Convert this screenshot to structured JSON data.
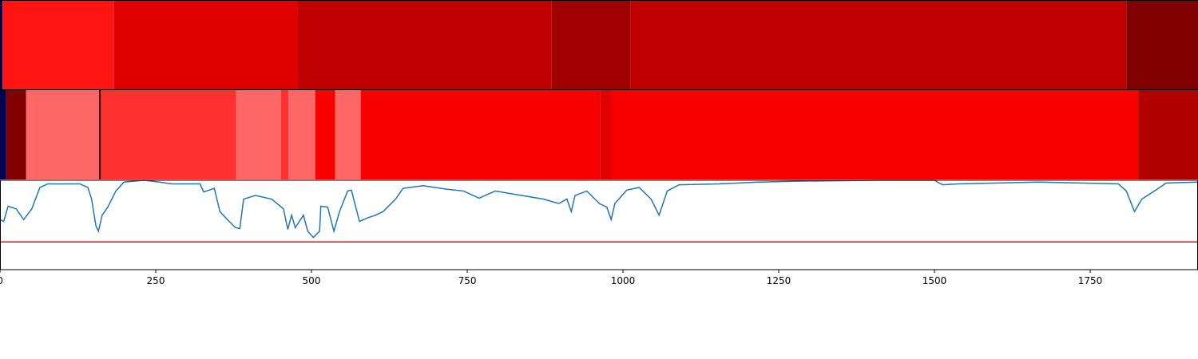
{
  "chart_data": [
    {
      "type": "strip",
      "xlim": [
        0,
        1923
      ],
      "bins": [
        0,
        4,
        183,
        477,
        885,
        1012,
        1808,
        1923
      ],
      "colors": [
        "#000050",
        "#ff1414",
        "#e00000",
        "#c00000",
        "#a00000",
        "#c00000",
        "#800000"
      ]
    },
    {
      "type": "strip",
      "xlim": [
        0,
        1923
      ],
      "bins": [
        0,
        10,
        42,
        159,
        162,
        379,
        451,
        463,
        506,
        538,
        579,
        963,
        982,
        1827,
        1923
      ],
      "colors": [
        "#000050",
        "#800000",
        "#ff6666",
        "#400000",
        "#ff3030",
        "#ff6666",
        "#ff3030",
        "#ff6666",
        "#f80000",
        "#ff6666",
        "#f80000",
        "#e00000",
        "#f80000",
        "#b00000"
      ]
    },
    {
      "type": "line",
      "xlim": [
        0,
        1923
      ],
      "ylim": [
        0,
        1
      ],
      "color": "#1f77b4",
      "xticks": [
        0,
        250,
        500,
        750,
        1000,
        1250,
        1500,
        1750
      ],
      "hline": {
        "value": 0.31,
        "color": "#ff0000"
      },
      "x": [
        0,
        6,
        13,
        26,
        38,
        51,
        64,
        77,
        103,
        128,
        141,
        147,
        154,
        158,
        164,
        173,
        186,
        199,
        231,
        256,
        276,
        321,
        327,
        344,
        353,
        365,
        378,
        385,
        391,
        410,
        436,
        455,
        462,
        468,
        474,
        487,
        494,
        503,
        513,
        515,
        526,
        536,
        545,
        558,
        564,
        577,
        590,
        603,
        615,
        635,
        647,
        679,
        718,
        744,
        769,
        795,
        846,
        872,
        897,
        910,
        917,
        923,
        942,
        962,
        974,
        981,
        987,
        1006,
        1026,
        1045,
        1058,
        1071,
        1090,
        1154,
        1218,
        1282,
        1410,
        1500,
        1513,
        1538,
        1667,
        1795,
        1808,
        1821,
        1833,
        1853,
        1872,
        1923
      ],
      "values": [
        0.56,
        0.54,
        0.71,
        0.68,
        0.56,
        0.68,
        0.92,
        0.96,
        0.96,
        0.96,
        0.92,
        0.79,
        0.49,
        0.43,
        0.61,
        0.7,
        0.88,
        0.98,
        1.0,
        0.98,
        0.96,
        0.96,
        0.87,
        0.91,
        0.65,
        0.56,
        0.47,
        0.46,
        0.79,
        0.83,
        0.79,
        0.68,
        0.45,
        0.61,
        0.47,
        0.61,
        0.43,
        0.36,
        0.43,
        0.71,
        0.7,
        0.43,
        0.65,
        0.88,
        0.89,
        0.54,
        0.58,
        0.61,
        0.65,
        0.79,
        0.91,
        0.94,
        0.9,
        0.88,
        0.8,
        0.88,
        0.82,
        0.79,
        0.74,
        0.79,
        0.65,
        0.83,
        0.88,
        0.74,
        0.7,
        0.56,
        0.74,
        0.89,
        0.92,
        0.79,
        0.61,
        0.88,
        0.95,
        0.96,
        0.98,
        0.99,
        1.0,
        1.0,
        0.95,
        0.96,
        0.98,
        0.96,
        0.88,
        0.65,
        0.79,
        0.88,
        0.97,
        0.98
      ]
    }
  ]
}
